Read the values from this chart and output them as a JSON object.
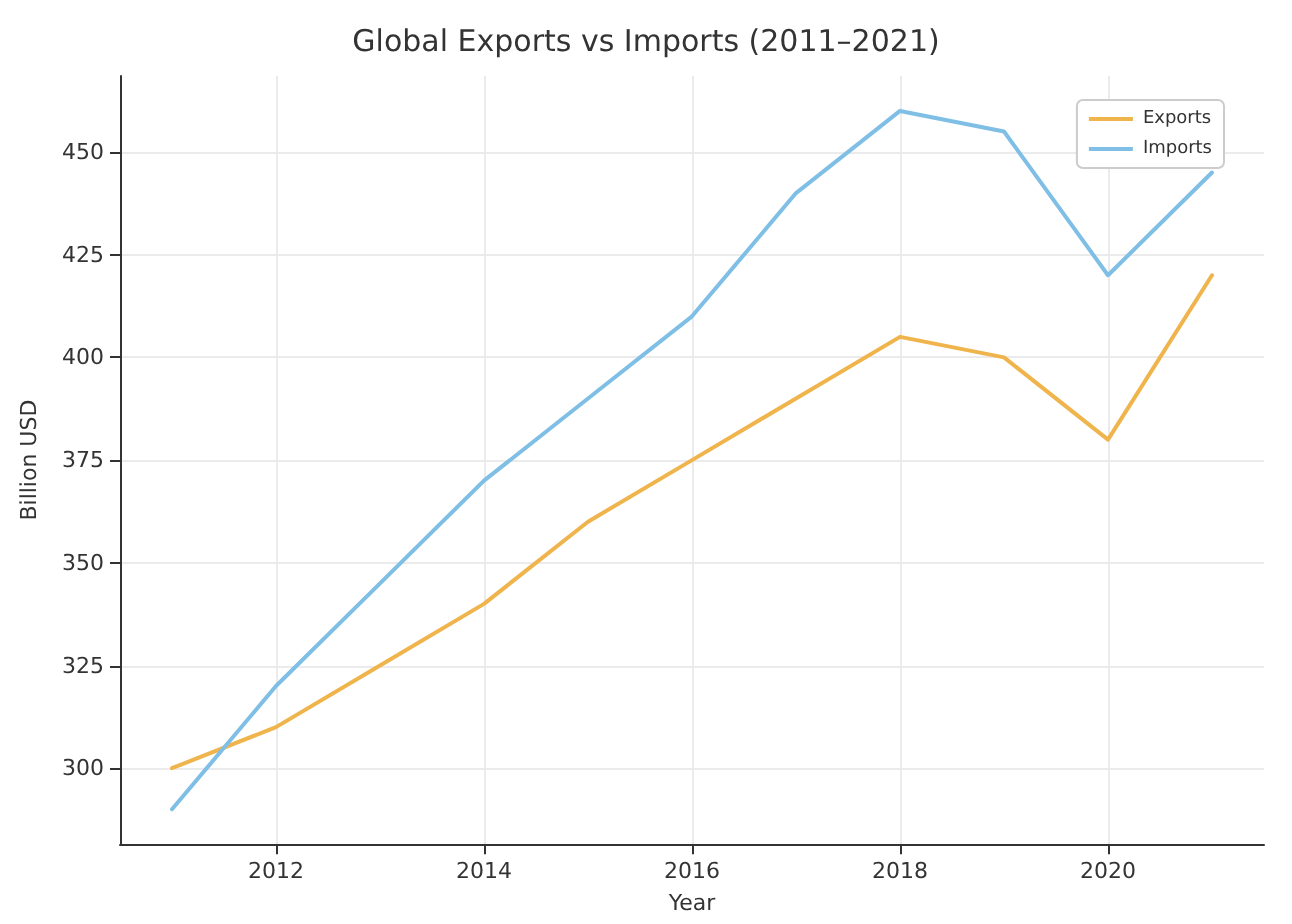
{
  "chart_data": {
    "type": "line",
    "title": "Global Exports vs Imports (2011–2021)",
    "xlabel": "Year",
    "ylabel": "Billion USD",
    "x": [
      2011,
      2012,
      2013,
      2014,
      2015,
      2016,
      2017,
      2018,
      2019,
      2020,
      2021
    ],
    "series": [
      {
        "name": "Exports",
        "color": "#f0b44c",
        "values": [
          300,
          310,
          325,
          340,
          360,
          375,
          390,
          405,
          400,
          380,
          420
        ]
      },
      {
        "name": "Imports",
        "color": "#7fbfe6",
        "values": [
          290,
          320,
          345,
          370,
          390,
          410,
          440,
          460,
          455,
          420,
          445
        ]
      }
    ],
    "xlim": [
      2010.5,
      2021.5
    ],
    "xticks": [
      2012,
      2014,
      2016,
      2018,
      2020
    ],
    "ylim": [
      281.5,
      468.5
    ],
    "yticks": [
      300,
      325,
      350,
      375,
      400,
      425,
      450
    ],
    "grid": true,
    "legend": "top right",
    "marker": "none",
    "line_style": "solid"
  }
}
